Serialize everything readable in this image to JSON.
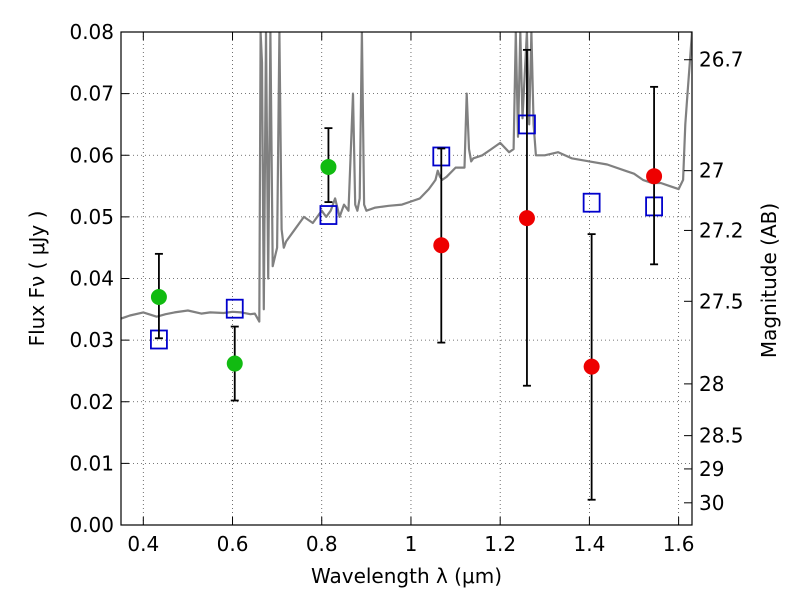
{
  "chart_data": {
    "type": "scatter",
    "title": "",
    "xlabel": "Wavelength  λ (μm)",
    "ylabel": "Flux  Fν  ( μJy )",
    "y2label": "Magnitude (AB)",
    "xlim": [
      0.35,
      1.63
    ],
    "ylim": [
      0.0,
      0.08
    ],
    "grid": true,
    "x_ticks": [
      0.4,
      0.6,
      0.8,
      1.0,
      1.2,
      1.4,
      1.6
    ],
    "x_tick_labels": [
      "0.4",
      "0.6",
      "0.8",
      "1",
      "1.2",
      "1.4",
      "1.6"
    ],
    "y_ticks": [
      0.0,
      0.01,
      0.02,
      0.03,
      0.04,
      0.05,
      0.06,
      0.07,
      0.08
    ],
    "y_tick_labels": [
      "0.00",
      "0.01",
      "0.02",
      "0.03",
      "0.04",
      "0.05",
      "0.06",
      "0.07",
      "0.08"
    ],
    "y2_ticks": [
      {
        "label": "26.7",
        "flux": 0.0755
      },
      {
        "label": "27",
        "flux": 0.0575
      },
      {
        "label": "27.2",
        "flux": 0.0478
      },
      {
        "label": "27.5",
        "flux": 0.0363
      },
      {
        "label": "28",
        "flux": 0.0229
      },
      {
        "label": "28.5",
        "flux": 0.0145
      },
      {
        "label": "29",
        "flux": 0.0091
      },
      {
        "label": "30",
        "flux": 0.0036
      }
    ],
    "colors": {
      "green_points": "#11bb11",
      "red_points": "#ee0000",
      "model_squares": "#0000cc",
      "spectrum": "#808080",
      "error_bars": "#000000"
    },
    "series": [
      {
        "kind": "points-with-errors",
        "color": "#11bb11",
        "points": [
          {
            "x": 0.435,
            "y": 0.037,
            "lo": 0.0303,
            "hi": 0.044
          },
          {
            "x": 0.605,
            "y": 0.0262,
            "lo": 0.0202,
            "hi": 0.0322
          },
          {
            "x": 0.815,
            "y": 0.0581,
            "lo": 0.0524,
            "hi": 0.0644
          }
        ]
      },
      {
        "kind": "points-with-errors",
        "color": "#ee0000",
        "points": [
          {
            "x": 1.068,
            "y": 0.0454,
            "lo": 0.0296,
            "hi": 0.0611
          },
          {
            "x": 1.26,
            "y": 0.0498,
            "lo": 0.0226,
            "hi": 0.0771
          },
          {
            "x": 1.405,
            "y": 0.0257,
            "lo": 0.0041,
            "hi": 0.0472
          },
          {
            "x": 1.545,
            "y": 0.0566,
            "lo": 0.0423,
            "hi": 0.0711
          }
        ]
      },
      {
        "kind": "open-squares",
        "color": "#0000cc",
        "points": [
          {
            "x": 0.435,
            "y": 0.0301
          },
          {
            "x": 0.605,
            "y": 0.0351
          },
          {
            "x": 0.815,
            "y": 0.0503
          },
          {
            "x": 1.068,
            "y": 0.0598
          },
          {
            "x": 1.26,
            "y": 0.065
          },
          {
            "x": 1.405,
            "y": 0.0523
          },
          {
            "x": 1.545,
            "y": 0.0517
          }
        ]
      },
      {
        "kind": "line",
        "color": "#808080",
        "x": [
          0.35,
          0.37,
          0.4,
          0.43,
          0.45,
          0.47,
          0.5,
          0.53,
          0.55,
          0.58,
          0.6,
          0.62,
          0.64,
          0.65,
          0.66,
          0.663,
          0.666,
          0.67,
          0.675,
          0.68,
          0.685,
          0.69,
          0.7,
          0.705,
          0.71,
          0.715,
          0.72,
          0.74,
          0.76,
          0.78,
          0.8,
          0.81,
          0.82,
          0.83,
          0.84,
          0.85,
          0.86,
          0.87,
          0.875,
          0.88,
          0.885,
          0.89,
          0.895,
          0.9,
          0.92,
          0.95,
          0.98,
          1.0,
          1.02,
          1.04,
          1.05,
          1.055,
          1.06,
          1.065,
          1.07,
          1.08,
          1.1,
          1.12,
          1.125,
          1.13,
          1.135,
          1.14,
          1.16,
          1.18,
          1.2,
          1.22,
          1.23,
          1.235,
          1.24,
          1.245,
          1.25,
          1.26,
          1.265,
          1.27,
          1.275,
          1.28,
          1.3,
          1.33,
          1.36,
          1.4,
          1.44,
          1.48,
          1.5,
          1.52,
          1.54,
          1.56,
          1.58,
          1.6,
          1.61,
          1.615,
          1.62,
          1.625,
          1.63
        ],
        "y": [
          0.0335,
          0.034,
          0.0345,
          0.0338,
          0.0342,
          0.0345,
          0.0348,
          0.0343,
          0.0345,
          0.0344,
          0.0346,
          0.0345,
          0.0342,
          0.0343,
          0.033,
          0.08,
          0.075,
          0.035,
          0.08,
          0.04,
          0.08,
          0.042,
          0.045,
          0.08,
          0.048,
          0.045,
          0.046,
          0.048,
          0.05,
          0.049,
          0.051,
          0.05,
          0.051,
          0.053,
          0.05,
          0.052,
          0.051,
          0.07,
          0.052,
          0.051,
          0.053,
          0.08,
          0.052,
          0.051,
          0.0515,
          0.0518,
          0.052,
          0.0525,
          0.053,
          0.0545,
          0.0555,
          0.056,
          0.0575,
          0.0565,
          0.056,
          0.0565,
          0.058,
          0.058,
          0.07,
          0.061,
          0.059,
          0.0595,
          0.06,
          0.061,
          0.062,
          0.0605,
          0.061,
          0.08,
          0.063,
          0.08,
          0.066,
          0.08,
          0.065,
          0.08,
          0.065,
          0.06,
          0.06,
          0.0605,
          0.0595,
          0.059,
          0.0585,
          0.0575,
          0.057,
          0.056,
          0.0555,
          0.0555,
          0.055,
          0.0545,
          0.056,
          0.065,
          0.07,
          0.075,
          0.08
        ]
      }
    ]
  }
}
